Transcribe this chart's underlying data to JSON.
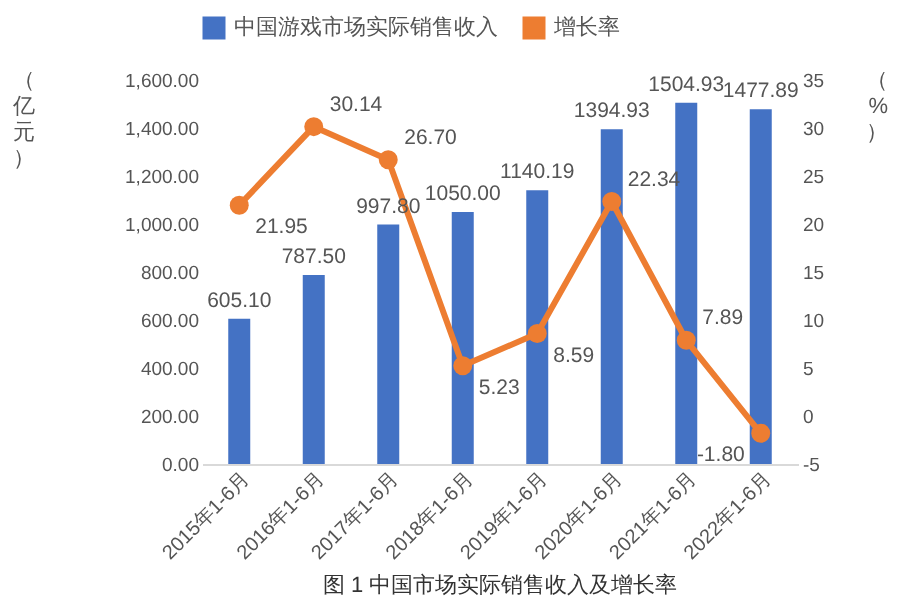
{
  "chart_data": {
    "type": "bar",
    "title": "图 1 中国市场实际销售收入及增长率",
    "ylabel": "（亿元）",
    "y2label": "（%）",
    "categories": [
      "2015年1-6月",
      "2016年1-6月",
      "2017年1-6月",
      "2018年1-6月",
      "2019年1-6月",
      "2020年1-6月",
      "2021年1-6月",
      "2022年1-6月"
    ],
    "series": [
      {
        "name": "中国游戏市场实际销售收入",
        "color": "#4472c4",
        "values": [
          605.1,
          787.5,
          997.8,
          1050.0,
          1140.19,
          1394.93,
          1504.93,
          1477.89
        ],
        "value_labels": [
          "605.10",
          "787.50",
          "997.80",
          "1050.00",
          "1140.19",
          "1394.93",
          "1504.93",
          "1477.89"
        ]
      },
      {
        "name": "增长率",
        "type": "line",
        "axis": "y2",
        "color": "#ed7d31",
        "marker": "circle",
        "line_style": "solid",
        "values": [
          21.95,
          30.14,
          26.7,
          5.23,
          8.59,
          22.34,
          7.89,
          -1.8
        ],
        "value_labels": [
          "21.95",
          "30.14",
          "26.70",
          "5.23",
          "8.59",
          "22.34",
          "7.89",
          "-1.80"
        ]
      }
    ],
    "ylim": [
      0,
      1600
    ],
    "yticks": [
      {
        "value": 0,
        "label": "0.00"
      },
      {
        "value": 200,
        "label": "200.00"
      },
      {
        "value": 400,
        "label": "400.00"
      },
      {
        "value": 600,
        "label": "600.00"
      },
      {
        "value": 800,
        "label": "800.00"
      },
      {
        "value": 1000,
        "label": "1,000.00"
      },
      {
        "value": 1200,
        "label": "1,200.00"
      },
      {
        "value": 1400,
        "label": "1,400.00"
      },
      {
        "value": 1600,
        "label": "1,600.00"
      }
    ],
    "y2lim": [
      -5,
      35
    ],
    "y2ticks": [
      -5,
      0,
      5,
      10,
      15,
      20,
      25,
      30,
      35
    ],
    "grid": false,
    "legend": "top"
  }
}
